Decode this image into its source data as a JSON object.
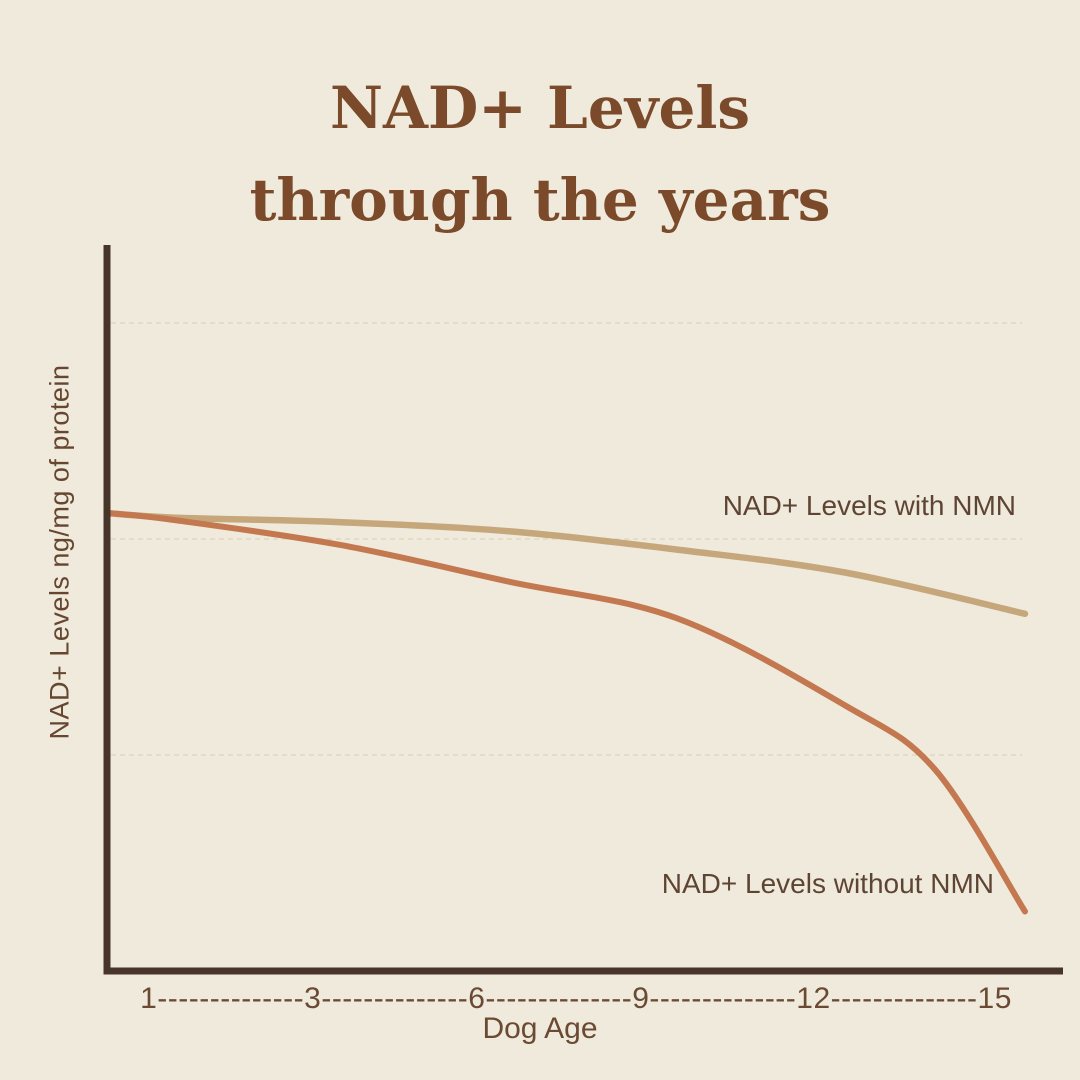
{
  "page": {
    "background_color": "#EFEADC"
  },
  "header": {
    "title_line1": "NAD+ Levels",
    "title_line2": "through the years",
    "title_color": "#7B4A2A"
  },
  "chart_data": {
    "type": "line",
    "title": "NAD+ Levels through the years",
    "xlabel": "Dog Age",
    "ylabel": "NAD+ Levels ng/mg of protein",
    "x_tick_labels": [
      "1",
      "3",
      "6",
      "9",
      "12",
      "15"
    ],
    "x_tick_separator": "--------------",
    "x_axis_style": "tick numbers joined by runs of dash characters, equally spaced",
    "y_axis_style": "no numeric tick labels; three faint dashed horizontal gridlines",
    "ylim": [
      0,
      115
    ],
    "y_value_meaning": "relative NAD+ level, 100 = starting (young age) level, estimated from curve pixels",
    "axis_color": "#47352A",
    "gridline_color": "#E4DCC9",
    "tick_text_color": "#6B4A33",
    "series_label_text_color": "#5E4533",
    "legend_position": "inline labels placed beside each curve",
    "series": [
      {
        "name": "NAD+ Levels with NMN",
        "color": "#C6A77C",
        "stroke_width": 6.5,
        "points": [
          {
            "age": 0,
            "level": 100
          },
          {
            "age": 1,
            "level": 99
          },
          {
            "age": 3,
            "level": 98
          },
          {
            "age": 6,
            "level": 96
          },
          {
            "age": 9,
            "level": 92
          },
          {
            "age": 12,
            "level": 87
          },
          {
            "age": 15,
            "level": 78
          }
        ]
      },
      {
        "name": "NAD+ Levels without NMN",
        "color": "#C4784F",
        "stroke_width": 6,
        "points": [
          {
            "age": 0,
            "level": 100
          },
          {
            "age": 1,
            "level": 98.5
          },
          {
            "age": 3,
            "level": 93
          },
          {
            "age": 6,
            "level": 85
          },
          {
            "age": 9,
            "level": 77
          },
          {
            "age": 12,
            "level": 58
          },
          {
            "age": 13.5,
            "level": 44
          },
          {
            "age": 15,
            "level": 13
          }
        ]
      }
    ]
  }
}
